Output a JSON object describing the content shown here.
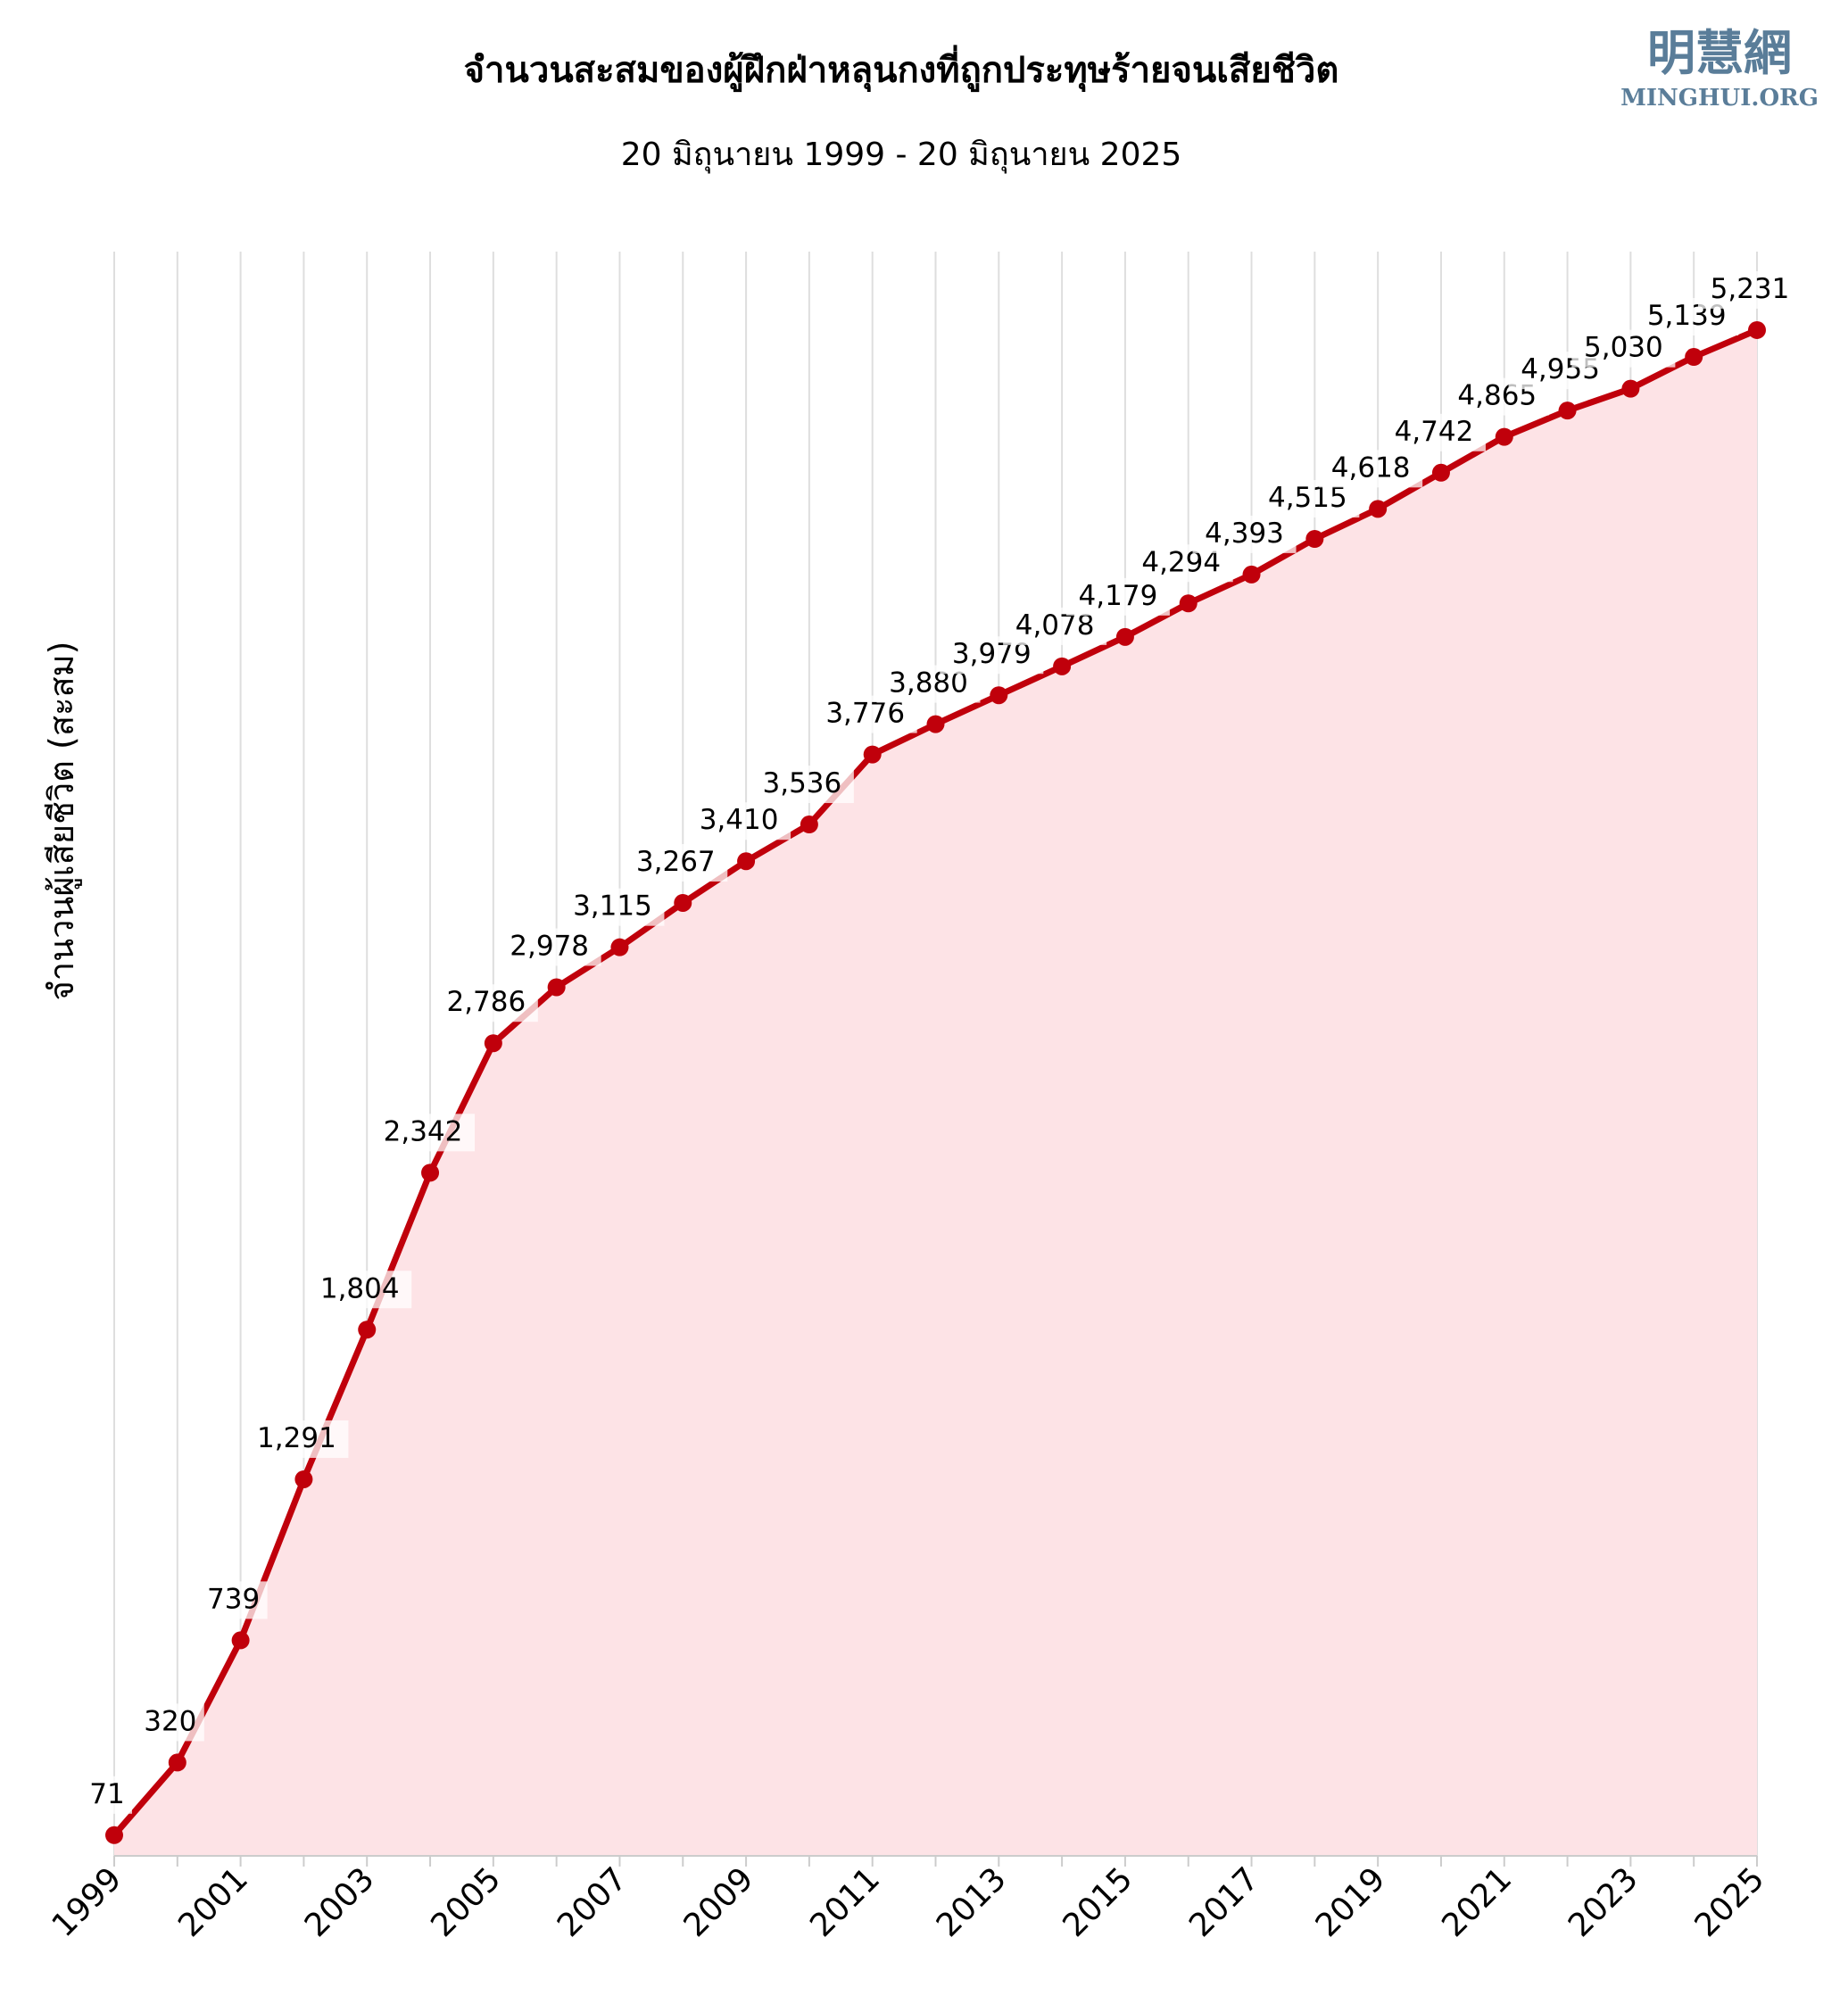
{
  "logo": {
    "chinese": "明慧網",
    "english": "MINGHUI.ORG"
  },
  "chart_data": {
    "type": "area",
    "title": "จำนวนสะสมของผู้ฝึกฝ่าหลุนกงที่ถูกประทุษร้ายจนเสียชีวิต",
    "subtitle": "20 มิถุนายน 1999 - 20 มิถุนายน 2025",
    "xlabel": "",
    "ylabel": "จำนวนผู้เสียชีวิต (สะสม)",
    "x": [
      1999,
      2000,
      2001,
      2002,
      2003,
      2004,
      2005,
      2006,
      2007,
      2008,
      2009,
      2010,
      2011,
      2012,
      2013,
      2014,
      2015,
      2016,
      2017,
      2018,
      2019,
      2020,
      2021,
      2022,
      2023,
      2024,
      2025
    ],
    "values": [
      71,
      320,
      739,
      1291,
      1804,
      2342,
      2786,
      2978,
      3115,
      3267,
      3410,
      3536,
      3776,
      3880,
      3979,
      4078,
      4179,
      4294,
      4393,
      4515,
      4618,
      4742,
      4865,
      4955,
      5030,
      5139,
      5231
    ],
    "value_labels": [
      "71",
      "320",
      "739",
      "1,291",
      "1,804",
      "2,342",
      "2,786",
      "2,978",
      "3,115",
      "3,267",
      "3,410",
      "3,536",
      "3,776",
      "3,880",
      "3,979",
      "4,078",
      "4,179",
      "4,294",
      "4,393",
      "4,515",
      "4,618",
      "4,742",
      "4,865",
      "4,955",
      "5,030",
      "5,139",
      "5,231"
    ],
    "x_tick_labels": [
      "1999",
      "2001",
      "2003",
      "2005",
      "2007",
      "2009",
      "2011",
      "2013",
      "2015",
      "2017",
      "2019",
      "2021",
      "2023",
      "2025"
    ],
    "xlim": [
      1999,
      2025
    ],
    "ylim": [
      0,
      5500
    ],
    "grid": "vertical",
    "y_ticks_shown": false,
    "colors": {
      "line": "#c0000b",
      "fill": "#fde3e6",
      "grid": "#dedede",
      "axis": "#cccccc"
    }
  }
}
